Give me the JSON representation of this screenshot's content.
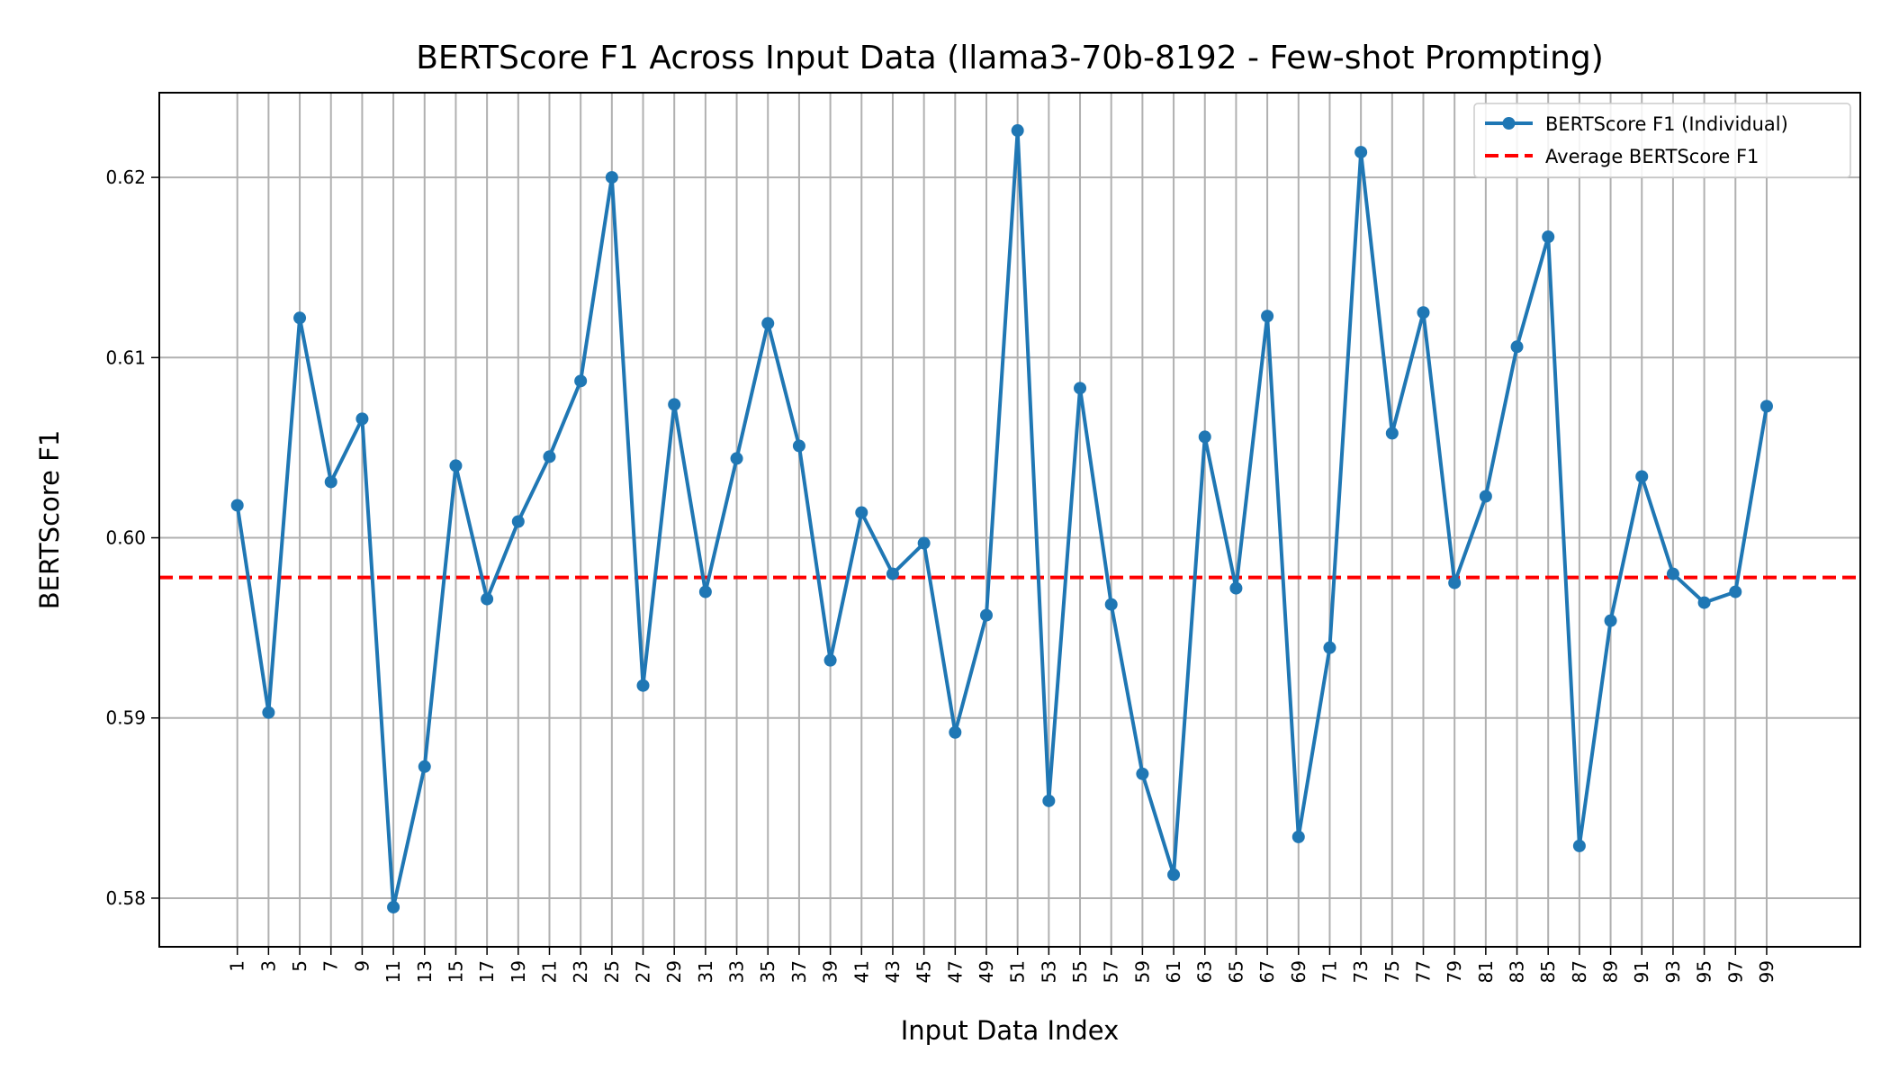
{
  "chart_data": {
    "type": "line",
    "title": "BERTScore F1 Across Input Data (llama3-70b-8192 - Few-shot Prompting)",
    "xlabel": "Input Data Index",
    "ylabel": "BERTScore F1",
    "xlim": [
      -4,
      105
    ],
    "ylim": [
      0.5773,
      0.6247
    ],
    "xticks": [
      1,
      3,
      5,
      7,
      9,
      11,
      13,
      15,
      17,
      19,
      21,
      23,
      25,
      27,
      29,
      31,
      33,
      35,
      37,
      39,
      41,
      43,
      45,
      47,
      49,
      51,
      53,
      55,
      57,
      59,
      61,
      63,
      65,
      67,
      69,
      71,
      73,
      75,
      77,
      79,
      81,
      83,
      85,
      87,
      89,
      91,
      93,
      95,
      97,
      99
    ],
    "xtick_labels": [
      "1",
      "3",
      "5",
      "7",
      "9",
      "11",
      "13",
      "15",
      "17",
      "19",
      "21",
      "23",
      "25",
      "27",
      "29",
      "31",
      "33",
      "35",
      "37",
      "39",
      "41",
      "43",
      "45",
      "47",
      "49",
      "51",
      "53",
      "55",
      "57",
      "59",
      "61",
      "63",
      "65",
      "67",
      "69",
      "71",
      "73",
      "75",
      "77",
      "79",
      "81",
      "83",
      "85",
      "87",
      "89",
      "91",
      "93",
      "95",
      "97",
      "99"
    ],
    "yticks": [
      0.58,
      0.59,
      0.6,
      0.61,
      0.62
    ],
    "ytick_labels": [
      "0.58",
      "0.59",
      "0.60",
      "0.61",
      "0.62"
    ],
    "grid": true,
    "legend_position": "top-right",
    "series": [
      {
        "name": "BERTScore F1 (Individual)",
        "style": "solid-line-with-dots",
        "color": "#1f77b4",
        "x": [
          1,
          3,
          5,
          7,
          9,
          11,
          13,
          15,
          17,
          19,
          21,
          23,
          25,
          27,
          29,
          31,
          33,
          35,
          37,
          39,
          41,
          43,
          45,
          47,
          49,
          51,
          53,
          55,
          57,
          59,
          61,
          63,
          65,
          67,
          69,
          71,
          73,
          75,
          77,
          79,
          81,
          83,
          85,
          87,
          89,
          91,
          93,
          95,
          97,
          99
        ],
        "y": [
          0.6018,
          0.5903,
          0.6122,
          0.6031,
          0.6066,
          0.5795,
          0.5873,
          0.604,
          0.5966,
          0.6009,
          0.6045,
          0.6087,
          0.62,
          0.5918,
          0.6074,
          0.597,
          0.6044,
          0.6119,
          0.6051,
          0.5932,
          0.6014,
          0.598,
          0.5997,
          0.5892,
          0.5957,
          0.6226,
          0.5854,
          0.6083,
          0.5963,
          0.5869,
          0.5813,
          0.6056,
          0.5972,
          0.6123,
          0.5834,
          0.5939,
          0.6214,
          0.6058,
          0.6125,
          0.5975,
          0.6023,
          0.6106,
          0.6167,
          0.5829,
          0.5954,
          0.6034,
          0.598,
          0.5964,
          0.597,
          0.6073
        ]
      },
      {
        "name": "Average BERTScore F1",
        "style": "dashed",
        "color": "#ff0000",
        "value": 0.5978
      }
    ]
  }
}
